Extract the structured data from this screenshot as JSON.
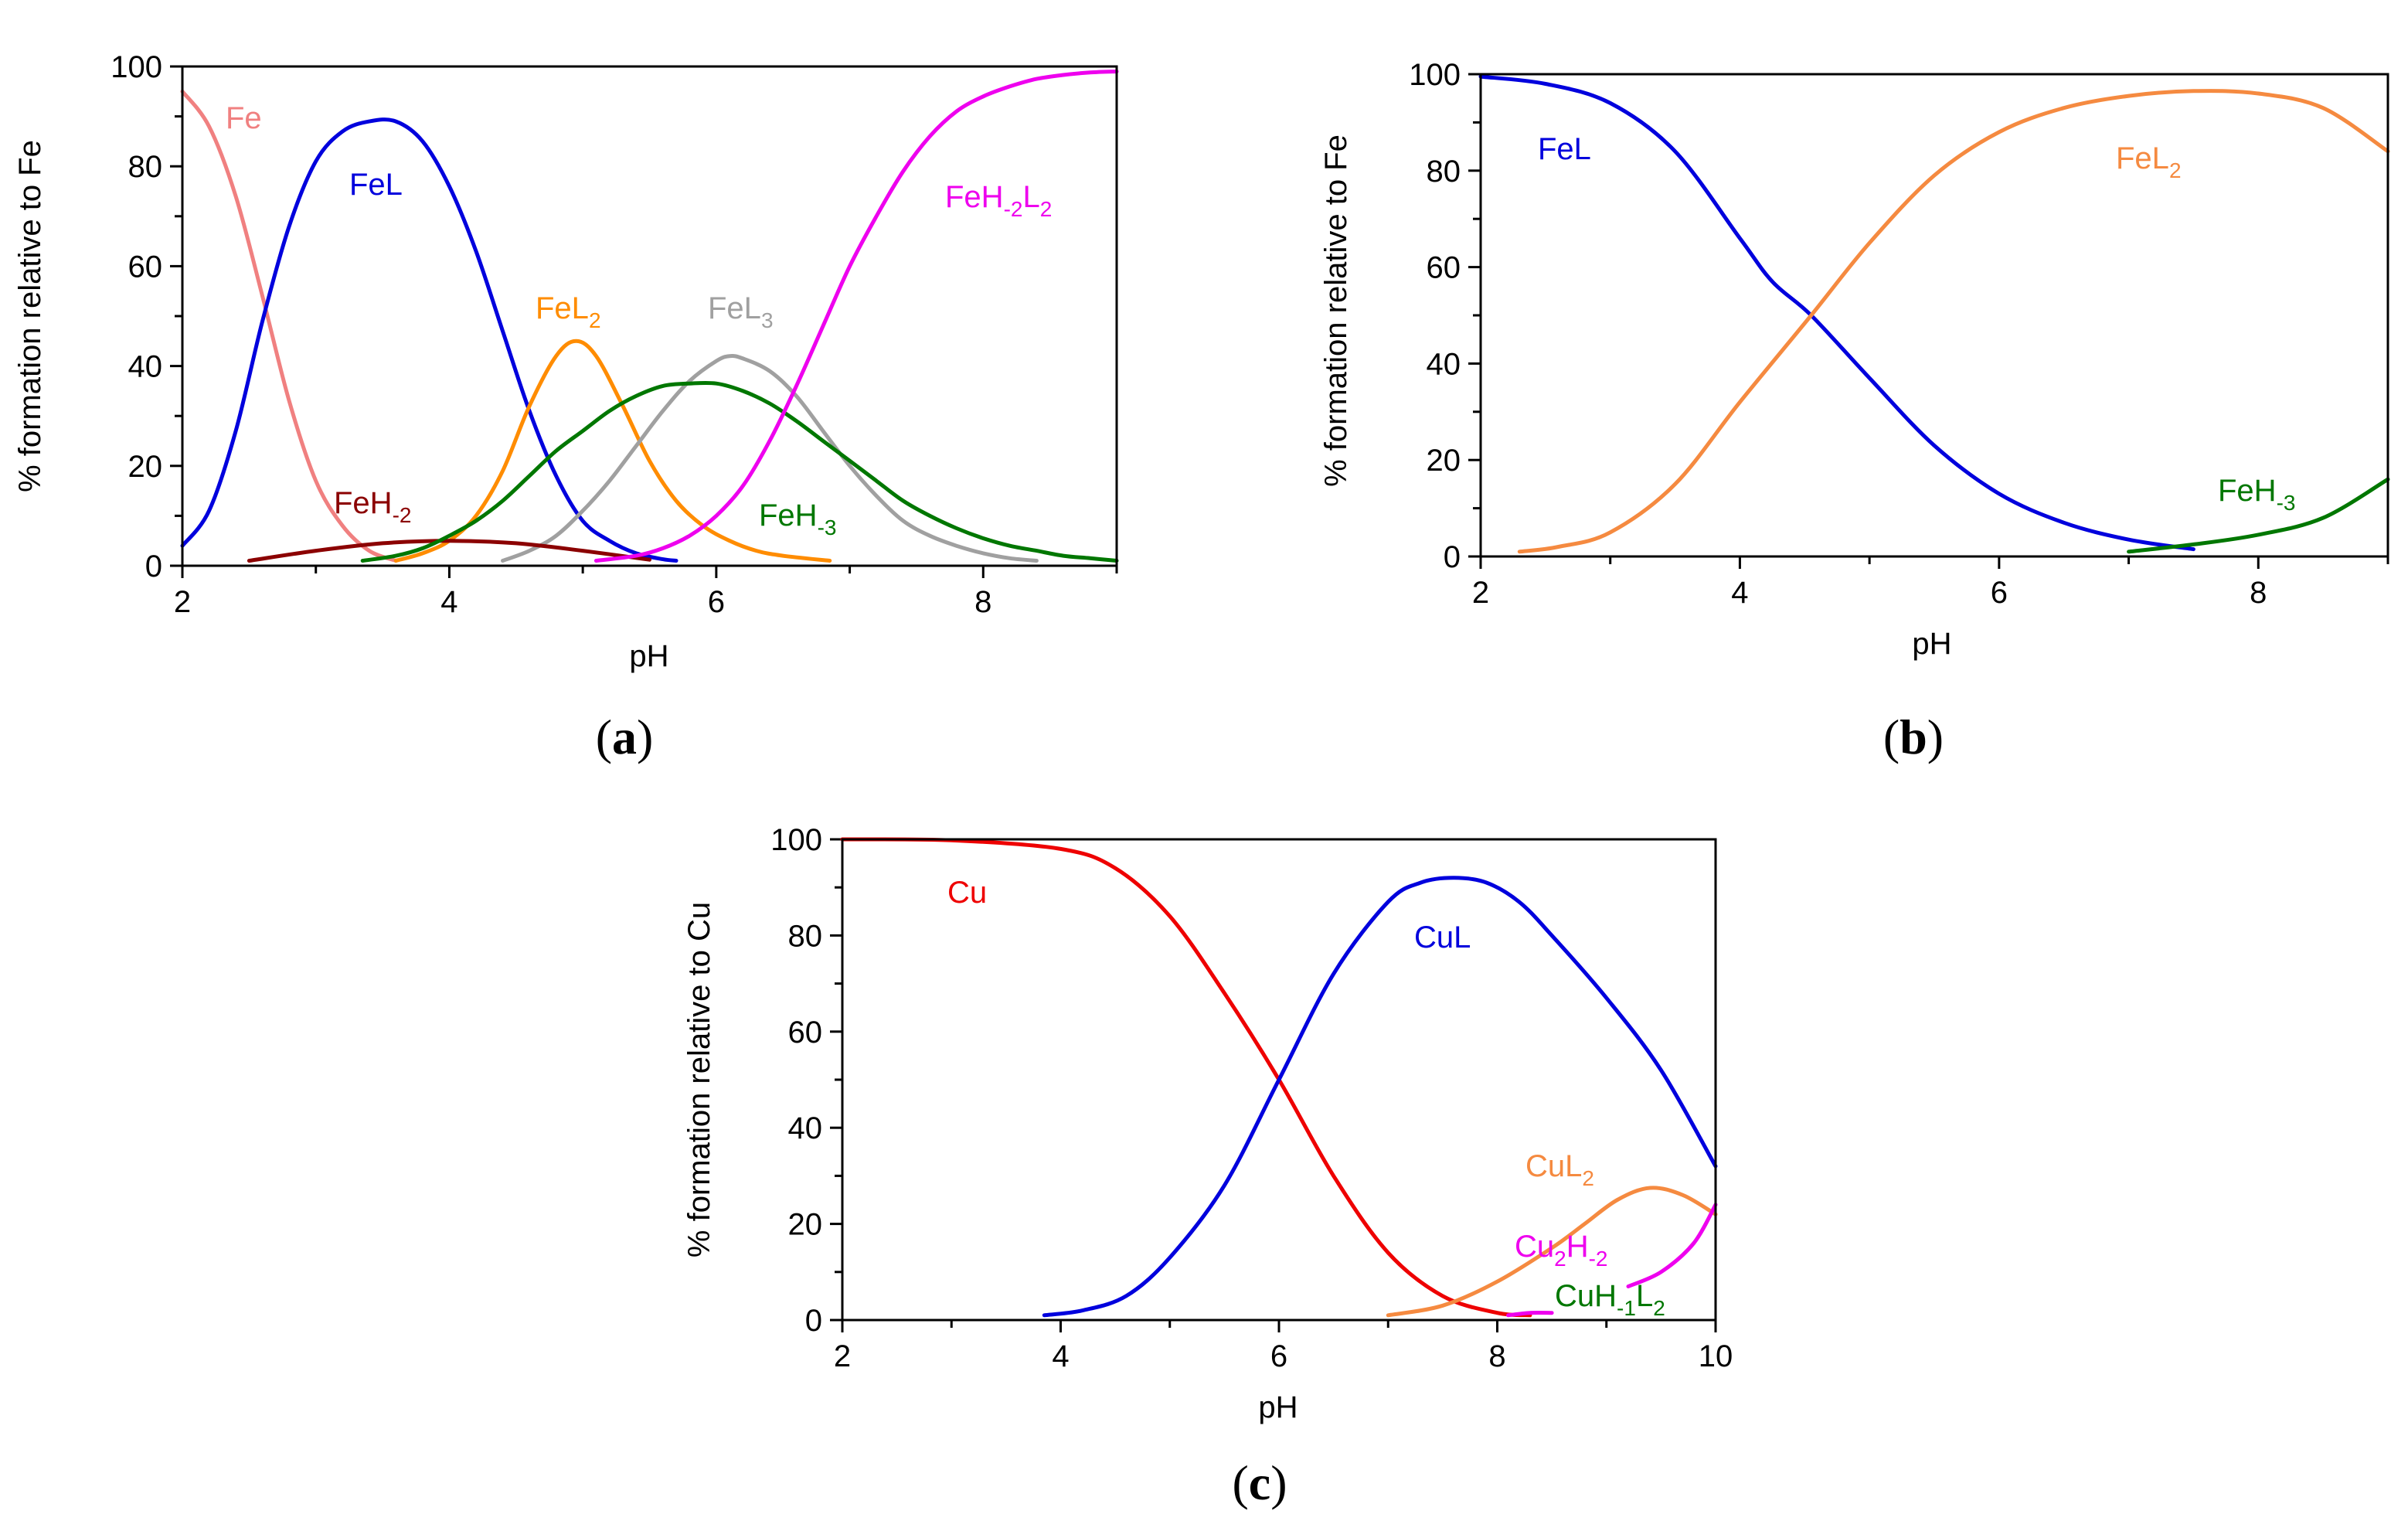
{
  "figure": {
    "panel_labels": [
      "(a)",
      "(b)",
      "(c)"
    ]
  },
  "colors": {
    "Fe": "#f08080",
    "FeL": "#0000dd",
    "FeL2": "#ff8c00",
    "FeL3": "#a0a0a0",
    "FeH-2": "#8b0000",
    "FeH-3": "#007700",
    "FeH-2L2": "#ee00ee",
    "FeL2_b": "#f58a40",
    "Cu": "#ee0000",
    "CuL": "#0000dd",
    "CuL2": "#f58a40",
    "Cu2H-2": "#ee00ee",
    "CuH-1L2": "#007700"
  },
  "chart_data": [
    {
      "type": "line",
      "panel": "(a)",
      "title": "",
      "xlabel": "pH",
      "ylabel": "% formation relative to Fe",
      "xlim": [
        2,
        9
      ],
      "ylim": [
        0,
        100
      ],
      "xticks": [
        2,
        4,
        6,
        8
      ],
      "yticks": [
        0,
        20,
        40,
        60,
        80,
        100
      ],
      "series": [
        {
          "name": "Fe",
          "label": "Fe",
          "color_key": "Fe",
          "x": [
            2.0,
            2.2,
            2.4,
            2.6,
            2.8,
            3.0,
            3.2,
            3.4,
            3.6
          ],
          "y": [
            95,
            88,
            74,
            54,
            33,
            17,
            8,
            3,
            1
          ]
        },
        {
          "name": "FeL",
          "label": "FeL",
          "color_key": "FeL",
          "x": [
            2.0,
            2.2,
            2.4,
            2.6,
            2.8,
            3.0,
            3.2,
            3.4,
            3.6,
            3.8,
            4.0,
            4.2,
            4.4,
            4.6,
            4.8,
            5.0,
            5.2,
            5.4,
            5.6,
            5.7
          ],
          "y": [
            4,
            11,
            27,
            49,
            68,
            81,
            87,
            89,
            89,
            85,
            76,
            63,
            47,
            31,
            18,
            9,
            5,
            2.5,
            1.3,
            1
          ]
        },
        {
          "name": "FeL2",
          "label": "FeL2",
          "color_key": "FeL2",
          "x": [
            3.6,
            3.8,
            4.0,
            4.2,
            4.4,
            4.6,
            4.8,
            4.95,
            5.1,
            5.3,
            5.5,
            5.7,
            5.9,
            6.1,
            6.3,
            6.5,
            6.85
          ],
          "y": [
            1,
            2.5,
            5,
            10,
            19,
            32,
            42,
            45,
            42,
            32,
            21,
            13,
            8,
            5,
            3,
            2,
            1
          ]
        },
        {
          "name": "FeL3",
          "label": "FeL3",
          "color_key": "FeL3",
          "x": [
            4.4,
            4.6,
            4.8,
            5.0,
            5.2,
            5.4,
            5.6,
            5.8,
            6.0,
            6.1,
            6.2,
            6.4,
            6.6,
            6.8,
            7.0,
            7.2,
            7.4,
            7.6,
            7.8,
            8.0,
            8.2,
            8.4
          ],
          "y": [
            1,
            3,
            6,
            11,
            17,
            24,
            31,
            37,
            41,
            42,
            41.5,
            39,
            34,
            27,
            20,
            14,
            9,
            6,
            4,
            2.5,
            1.5,
            1
          ]
        },
        {
          "name": "FeH-2",
          "label": "FeH-2",
          "color_key": "FeH-2",
          "x": [
            2.5,
            3.0,
            3.5,
            4.0,
            4.5,
            5.0,
            5.5
          ],
          "y": [
            1,
            3,
            4.5,
            5,
            4.5,
            3,
            1.2
          ]
        },
        {
          "name": "FeH-3",
          "label": "FeH-3",
          "color_key": "FeH-3",
          "x": [
            3.35,
            3.6,
            3.8,
            4.0,
            4.2,
            4.4,
            4.6,
            4.8,
            5.0,
            5.2,
            5.4,
            5.6,
            5.8,
            6.0,
            6.2,
            6.4,
            6.6,
            6.8,
            7.0,
            7.2,
            7.4,
            7.6,
            7.8,
            8.0,
            8.2,
            8.4,
            8.6,
            8.8,
            9.0
          ],
          "y": [
            1,
            2,
            3.5,
            6,
            9,
            13,
            18,
            23,
            27,
            31,
            34,
            36,
            36.5,
            36.5,
            35,
            32.5,
            29,
            25,
            21,
            17,
            13,
            10,
            7.5,
            5.5,
            4,
            3,
            2,
            1.5,
            1
          ]
        },
        {
          "name": "FeH-2L2",
          "label": "FeH-2L2",
          "color_key": "FeH-2L2",
          "x": [
            5.1,
            5.4,
            5.6,
            5.8,
            6.0,
            6.2,
            6.4,
            6.6,
            6.8,
            7.0,
            7.2,
            7.4,
            7.6,
            7.8,
            8.0,
            8.2,
            8.4,
            8.6,
            8.8,
            9.0
          ],
          "y": [
            1,
            2,
            3.5,
            6,
            10,
            16,
            25,
            36,
            48,
            60,
            70,
            79,
            86,
            91,
            94,
            96,
            97.5,
            98.3,
            98.8,
            99
          ]
        }
      ]
    },
    {
      "type": "line",
      "panel": "(b)",
      "title": "",
      "xlabel": "pH",
      "ylabel": "% formation relative to Fe",
      "xlim": [
        2,
        9
      ],
      "ylim": [
        0,
        100
      ],
      "xticks": [
        2,
        4,
        6,
        8
      ],
      "yticks": [
        0,
        20,
        40,
        60,
        80,
        100
      ],
      "series": [
        {
          "name": "FeL",
          "label": "FeL",
          "color_key": "FeL",
          "x": [
            2.0,
            2.5,
            3.0,
            3.5,
            4.0,
            4.25,
            4.55,
            5.0,
            5.5,
            6.0,
            6.5,
            7.0,
            7.5
          ],
          "y": [
            99.5,
            98,
            94,
            84,
            66,
            57,
            50,
            37,
            23,
            13,
            7,
            3.5,
            1.5
          ]
        },
        {
          "name": "FeL2",
          "label": "FeL2",
          "color_key": "FeL2_b",
          "x": [
            2.3,
            2.6,
            3.0,
            3.5,
            4.0,
            4.55,
            5.0,
            5.5,
            6.0,
            6.5,
            7.0,
            7.5,
            8.0,
            8.5,
            9.0
          ],
          "y": [
            1,
            2,
            5,
            15,
            32,
            50,
            65,
            79,
            88,
            93,
            95.5,
            96.5,
            96,
            93,
            84
          ]
        },
        {
          "name": "FeH-3",
          "label": "FeH-3",
          "color_key": "FeH-3",
          "x": [
            7.0,
            7.5,
            8.0,
            8.5,
            9.0
          ],
          "y": [
            1,
            2.5,
            4.5,
            8,
            16
          ]
        }
      ]
    },
    {
      "type": "line",
      "panel": "(c)",
      "title": "",
      "xlabel": "pH",
      "ylabel": "% formation relative to Cu",
      "xlim": [
        2,
        10
      ],
      "ylim": [
        0,
        100
      ],
      "xticks": [
        2,
        4,
        6,
        8,
        10
      ],
      "yticks": [
        0,
        20,
        40,
        60,
        80,
        100
      ],
      "series": [
        {
          "name": "Cu",
          "label": "Cu",
          "color_key": "Cu",
          "x": [
            2.0,
            3.0,
            4.0,
            4.5,
            5.0,
            5.5,
            6.0,
            6.5,
            7.0,
            7.5,
            8.0,
            8.3
          ],
          "y": [
            100,
            99.8,
            98,
            94,
            84,
            68,
            50,
            30,
            14,
            5,
            1.5,
            1
          ]
        },
        {
          "name": "CuL",
          "label": "CuL",
          "color_key": "CuL",
          "x": [
            3.85,
            4.2,
            4.6,
            5.0,
            5.5,
            6.0,
            6.5,
            7.0,
            7.3,
            7.6,
            7.9,
            8.2,
            8.5,
            9.0,
            9.5,
            10.0
          ],
          "y": [
            1,
            2,
            5,
            13,
            28,
            50,
            72,
            87,
            91,
            92,
            91,
            87,
            80,
            67,
            52,
            32
          ]
        },
        {
          "name": "CuL2",
          "label": "CuL2",
          "color_key": "CuL2",
          "x": [
            7.0,
            7.5,
            8.0,
            8.5,
            8.8,
            9.1,
            9.4,
            9.7,
            10.0
          ],
          "y": [
            1,
            3,
            8,
            15,
            20,
            25,
            27.5,
            26,
            22
          ]
        },
        {
          "name": "Cu2H-2",
          "label": "Cu2H-2",
          "color_key": "Cu2H-2",
          "x": [
            8.1,
            8.3,
            8.5
          ],
          "y": [
            1,
            1.5,
            1.5
          ]
        },
        {
          "name": "CuH-1L2",
          "label": "CuH-1L2",
          "color_key": "Cu2H-2",
          "x": [
            9.2,
            9.5,
            9.8,
            10.0
          ],
          "y": [
            7,
            10,
            16,
            24
          ]
        }
      ]
    }
  ]
}
